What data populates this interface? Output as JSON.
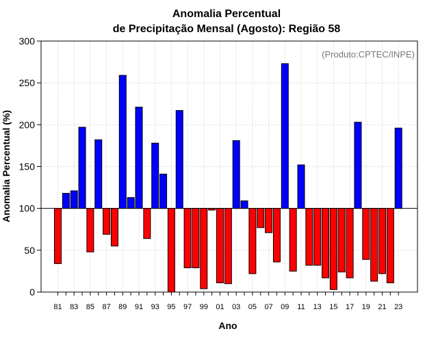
{
  "chart_data": {
    "type": "bar",
    "title": [
      "Anomalia Percentual",
      "de Precipitação Mensal (Agosto): Região 58"
    ],
    "xlabel": "Ano",
    "ylabel": "Anomalia Percentual (%)",
    "credit": "(Produto:CPTEC/INPE)",
    "ylim": [
      0,
      300
    ],
    "yticks": [
      0,
      50,
      100,
      150,
      200,
      250,
      300
    ],
    "baseline": 100,
    "grid": true,
    "categories": [
      "81",
      "82",
      "83",
      "84",
      "85",
      "86",
      "87",
      "88",
      "89",
      "90",
      "91",
      "92",
      "93",
      "94",
      "95",
      "96",
      "97",
      "98",
      "99",
      "00",
      "01",
      "02",
      "03",
      "04",
      "05",
      "06",
      "07",
      "08",
      "09",
      "10",
      "11",
      "12",
      "13",
      "14",
      "15",
      "16",
      "17",
      "18",
      "19",
      "20",
      "21",
      "22",
      "23"
    ],
    "xtick_labels": [
      "81",
      "83",
      "85",
      "87",
      "89",
      "91",
      "93",
      "95",
      "97",
      "99",
      "01",
      "03",
      "05",
      "07",
      "09",
      "11",
      "13",
      "15",
      "17",
      "19",
      "21",
      "23"
    ],
    "values": [
      34,
      118,
      121,
      197,
      48,
      182,
      69,
      55,
      259,
      113,
      221,
      64,
      178,
      141,
      0,
      217,
      29,
      29,
      4,
      98,
      11,
      10,
      181,
      109,
      22,
      77,
      71,
      36,
      273,
      25,
      152,
      32,
      32,
      17,
      3,
      24,
      17,
      203,
      39,
      13,
      22,
      11,
      196
    ],
    "colors": {
      "above": "#0000ff",
      "below": "#ff0000",
      "grid": "#dddddd",
      "axis": "#000000"
    }
  }
}
